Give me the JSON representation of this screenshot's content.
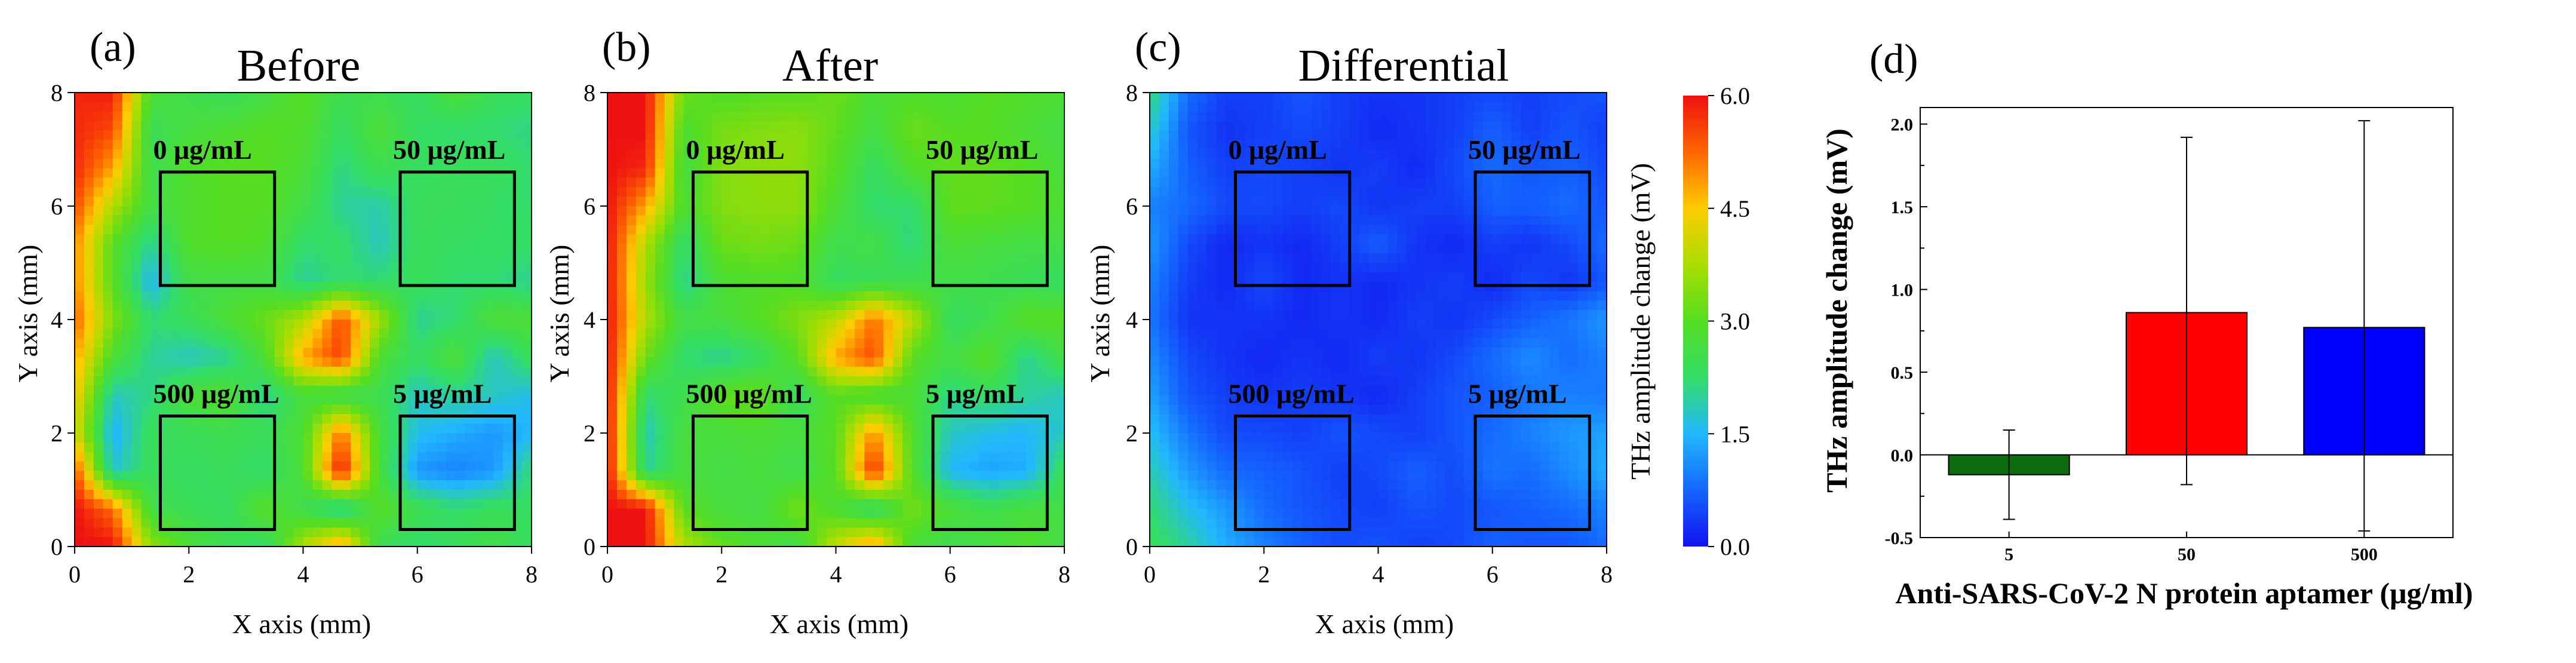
{
  "figure": {
    "background": "#ffffff"
  },
  "colormap": {
    "stops": [
      "#1212ee",
      "#1466ff",
      "#22b8ff",
      "#33dd66",
      "#55dd22",
      "#aadd00",
      "#ffcc00",
      "#ff6600",
      "#ee1111"
    ]
  },
  "chart_data": [
    {
      "type": "heatmap",
      "panel_label": "(a)",
      "title": "Before",
      "xlabel": "X axis (mm)",
      "ylabel": "Y axis (mm)",
      "xlim": [
        0,
        8
      ],
      "ylim": [
        0,
        8
      ],
      "x_ticks": [
        "0",
        "2",
        "4",
        "6",
        "8"
      ],
      "y_ticks": [
        "0",
        "2",
        "4",
        "6",
        "8"
      ],
      "grid": [
        [
          5.8,
          5.9,
          2.8,
          2.5,
          2.4,
          2.6,
          3.0,
          2.5,
          2.5,
          2.3,
          2.8,
          2.4,
          2.3
        ],
        [
          5.8,
          5.5,
          2.4,
          2.7,
          2.8,
          3.0,
          2.9,
          2.3,
          2.8,
          2.3,
          2.2,
          2.2,
          2.1
        ],
        [
          5.8,
          4.8,
          2.5,
          2.9,
          3.0,
          3.0,
          2.8,
          2.1,
          2.5,
          2.3,
          2.4,
          2.4,
          2.2
        ],
        [
          5.5,
          3.8,
          2.6,
          2.9,
          3.0,
          3.0,
          2.6,
          2.0,
          1.9,
          2.4,
          2.4,
          2.3,
          2.2
        ],
        [
          5.0,
          3.0,
          2.0,
          2.9,
          3.0,
          2.9,
          2.2,
          2.3,
          1.8,
          2.4,
          2.3,
          2.3,
          2.3
        ],
        [
          5.0,
          3.0,
          1.5,
          2.6,
          2.6,
          2.6,
          2.0,
          2.2,
          2.2,
          2.4,
          2.2,
          2.2,
          2.0
        ],
        [
          5.3,
          3.4,
          2.2,
          2.4,
          2.8,
          3.2,
          3.8,
          5.5,
          3.7,
          2.0,
          2.2,
          2.8,
          2.8
        ],
        [
          4.8,
          2.8,
          2.0,
          1.8,
          2.0,
          2.8,
          4.8,
          5.6,
          2.8,
          2.3,
          2.8,
          1.8,
          2.4
        ],
        [
          4.5,
          1.8,
          2.1,
          2.8,
          2.9,
          2.0,
          2.7,
          2.4,
          2.5,
          1.8,
          2.0,
          1.8,
          1.6
        ],
        [
          4.2,
          1.4,
          2.4,
          2.4,
          2.5,
          2.4,
          2.8,
          5.2,
          2.7,
          1.6,
          1.4,
          1.2,
          1.5
        ],
        [
          5.5,
          1.7,
          2.4,
          2.3,
          2.4,
          2.2,
          2.8,
          6.0,
          2.7,
          1.2,
          1.0,
          1.2,
          2.2
        ],
        [
          6.0,
          5.2,
          2.6,
          2.4,
          2.3,
          3.0,
          2.5,
          1.8,
          3.0,
          2.5,
          2.2,
          2.4,
          2.3
        ],
        [
          6.0,
          6.0,
          3.5,
          2.8,
          2.5,
          2.2,
          3.8,
          5.0,
          2.4,
          2.2,
          2.4,
          2.6,
          2.3
        ]
      ],
      "regions": [
        {
          "label": "0 μg/mL",
          "x": [
            1.5,
            3.5
          ],
          "y": [
            4.6,
            6.6
          ]
        },
        {
          "label": "50 μg/mL",
          "x": [
            5.7,
            7.7
          ],
          "y": [
            4.6,
            6.6
          ]
        },
        {
          "label": "500 μg/mL",
          "x": [
            1.5,
            3.5
          ],
          "y": [
            0.3,
            2.3
          ]
        },
        {
          "label": "5 μg/mL",
          "x": [
            5.7,
            7.7
          ],
          "y": [
            0.3,
            2.3
          ]
        }
      ]
    },
    {
      "type": "heatmap",
      "panel_label": "(b)",
      "title": "After",
      "xlabel": "X axis (mm)",
      "ylabel": "Y axis (mm)",
      "xlim": [
        0,
        8
      ],
      "ylim": [
        0,
        8
      ],
      "x_ticks": [
        "0",
        "2",
        "4",
        "6",
        "8"
      ],
      "y_ticks": [
        "0",
        "2",
        "4",
        "6",
        "8"
      ],
      "grid": [
        [
          6.0,
          6.0,
          3.2,
          2.9,
          3.0,
          3.0,
          3.2,
          2.8,
          2.9,
          2.8,
          3.0,
          2.9,
          2.8
        ],
        [
          6.0,
          6.0,
          2.8,
          3.3,
          3.4,
          3.5,
          3.1,
          2.6,
          3.2,
          3.0,
          3.0,
          2.8,
          2.6
        ],
        [
          6.0,
          5.8,
          2.6,
          3.4,
          3.5,
          3.5,
          3.0,
          2.3,
          2.9,
          3.1,
          3.1,
          3.0,
          2.7
        ],
        [
          6.0,
          4.8,
          2.8,
          3.4,
          3.5,
          3.5,
          2.8,
          2.2,
          2.2,
          3.1,
          3.1,
          3.0,
          2.8
        ],
        [
          6.0,
          3.8,
          2.2,
          3.2,
          3.3,
          3.2,
          2.5,
          2.6,
          2.1,
          2.8,
          2.7,
          2.6,
          2.6
        ],
        [
          6.0,
          3.6,
          2.0,
          2.8,
          2.9,
          2.9,
          2.3,
          2.4,
          2.5,
          2.6,
          2.5,
          2.4,
          2.3
        ],
        [
          6.0,
          3.8,
          2.6,
          2.7,
          3.0,
          3.4,
          3.9,
          5.2,
          3.9,
          2.3,
          2.5,
          3.0,
          3.0
        ],
        [
          6.0,
          3.2,
          2.2,
          2.0,
          2.3,
          3.0,
          4.8,
          5.5,
          3.0,
          2.6,
          3.0,
          2.0,
          2.6
        ],
        [
          6.0,
          2.2,
          2.5,
          3.1,
          3.2,
          2.3,
          3.0,
          2.7,
          2.8,
          2.1,
          2.3,
          2.0,
          1.8
        ],
        [
          6.0,
          1.8,
          2.7,
          2.7,
          2.8,
          2.7,
          3.0,
          5.0,
          2.9,
          1.8,
          1.6,
          1.5,
          1.8
        ],
        [
          6.0,
          2.0,
          2.7,
          2.6,
          2.7,
          2.5,
          3.0,
          5.8,
          2.9,
          1.5,
          1.3,
          1.4,
          2.4
        ],
        [
          6.0,
          6.0,
          3.0,
          2.7,
          2.6,
          3.3,
          2.8,
          2.1,
          3.3,
          2.8,
          2.5,
          2.7,
          2.6
        ],
        [
          6.0,
          6.0,
          3.8,
          3.1,
          2.8,
          2.5,
          4.0,
          5.0,
          2.7,
          2.5,
          2.7,
          2.9,
          2.6
        ]
      ],
      "regions": [
        {
          "label": "0 μg/mL",
          "x": [
            1.5,
            3.5
          ],
          "y": [
            4.6,
            6.6
          ]
        },
        {
          "label": "50 μg/mL",
          "x": [
            5.7,
            7.7
          ],
          "y": [
            4.6,
            6.6
          ]
        },
        {
          "label": "500 μg/mL",
          "x": [
            1.5,
            3.5
          ],
          "y": [
            0.3,
            2.3
          ]
        },
        {
          "label": "5 μg/mL",
          "x": [
            5.7,
            7.7
          ],
          "y": [
            0.3,
            2.3
          ]
        }
      ]
    },
    {
      "type": "heatmap",
      "panel_label": "(c)",
      "title": "Differential",
      "xlabel": "X axis (mm)",
      "ylabel": "Y axis (mm)",
      "xlim": [
        0,
        8
      ],
      "ylim": [
        0,
        8
      ],
      "x_ticks": [
        "0",
        "2",
        "4",
        "6",
        "8"
      ],
      "y_ticks": [
        "0",
        "2",
        "4",
        "6",
        "8"
      ],
      "grid": [
        [
          2.2,
          0.8,
          0.4,
          0.4,
          0.6,
          0.4,
          0.3,
          0.3,
          0.4,
          0.5,
          0.4,
          0.5,
          0.6
        ],
        [
          1.8,
          0.6,
          0.3,
          0.4,
          0.5,
          0.4,
          0.2,
          0.3,
          0.4,
          0.7,
          0.4,
          0.6,
          0.4
        ],
        [
          1.4,
          0.7,
          0.4,
          0.5,
          0.4,
          0.3,
          0.4,
          0.2,
          0.5,
          0.8,
          0.6,
          0.7,
          0.5
        ],
        [
          1.0,
          0.8,
          0.5,
          0.5,
          0.4,
          0.5,
          0.3,
          0.4,
          0.4,
          0.7,
          0.7,
          0.8,
          0.6
        ],
        [
          1.2,
          0.5,
          0.2,
          0.3,
          0.2,
          0.4,
          0.7,
          0.3,
          0.2,
          0.4,
          0.3,
          0.5,
          0.8
        ],
        [
          1.0,
          0.4,
          0.2,
          0.5,
          0.2,
          0.3,
          0.2,
          0.3,
          0.4,
          0.2,
          0.5,
          0.3,
          0.6
        ],
        [
          0.9,
          0.3,
          0.3,
          0.3,
          0.2,
          0.3,
          0.2,
          0.4,
          0.3,
          0.5,
          0.7,
          0.9,
          1.2
        ],
        [
          1.1,
          0.5,
          0.3,
          0.2,
          0.3,
          0.2,
          0.4,
          0.3,
          0.5,
          0.8,
          1.1,
          0.8,
          1.0
        ],
        [
          1.3,
          0.6,
          0.4,
          0.3,
          0.4,
          0.3,
          0.2,
          0.4,
          0.6,
          0.7,
          0.9,
          1.0,
          0.9
        ],
        [
          1.6,
          0.9,
          0.5,
          0.5,
          0.4,
          0.6,
          0.5,
          0.4,
          0.6,
          0.8,
          1.0,
          1.2,
          1.3
        ],
        [
          1.9,
          1.2,
          0.8,
          0.7,
          0.6,
          0.4,
          0.5,
          0.7,
          0.5,
          0.9,
          0.8,
          1.1,
          1.4
        ],
        [
          2.2,
          1.6,
          1.2,
          0.8,
          0.6,
          0.5,
          0.4,
          0.6,
          0.5,
          0.6,
          0.7,
          0.8,
          1.0
        ],
        [
          2.4,
          2.0,
          1.4,
          1.0,
          0.7,
          0.5,
          0.6,
          0.4,
          0.5,
          0.7,
          0.6,
          0.6,
          0.8
        ]
      ],
      "regions": [
        {
          "label": "0 μg/mL",
          "x": [
            1.5,
            3.5
          ],
          "y": [
            4.6,
            6.6
          ]
        },
        {
          "label": "50 μg/mL",
          "x": [
            5.7,
            7.7
          ],
          "y": [
            4.6,
            6.6
          ]
        },
        {
          "label": "500 μg/mL",
          "x": [
            1.5,
            3.5
          ],
          "y": [
            0.3,
            2.3
          ]
        },
        {
          "label": "5 μg/mL",
          "x": [
            5.7,
            7.7
          ],
          "y": [
            0.3,
            2.3
          ]
        }
      ]
    },
    {
      "type": "colorbar",
      "label": "THz amplitude change (mV)",
      "range": [
        0,
        6
      ],
      "tick_values": [
        0,
        1.5,
        3,
        4.5,
        6
      ],
      "tick_labels": [
        "0.0",
        "1.5",
        "3.0",
        "4.5",
        "6.0"
      ]
    },
    {
      "type": "bar",
      "panel_label": "(d)",
      "xlabel": "Anti-SARS-CoV-2 N protein aptamer (μg/ml)",
      "ylabel": "THz amplitude change (mV)",
      "categories": [
        "5",
        "50",
        "500"
      ],
      "values": [
        -0.12,
        0.86,
        0.77
      ],
      "error_low": [
        -0.39,
        -0.18,
        -0.46
      ],
      "error_high": [
        0.15,
        1.92,
        2.02
      ],
      "colors": [
        "#0f6b0f",
        "#ff0000",
        "#0000ff"
      ],
      "ylim": [
        -0.5,
        2.1
      ],
      "y_tick_values": [
        -0.5,
        0,
        0.5,
        1,
        1.5,
        2
      ],
      "y_tick_labels": [
        "-0.5",
        "0.0",
        "0.5",
        "1.0",
        "1.5",
        "2.0"
      ]
    }
  ]
}
